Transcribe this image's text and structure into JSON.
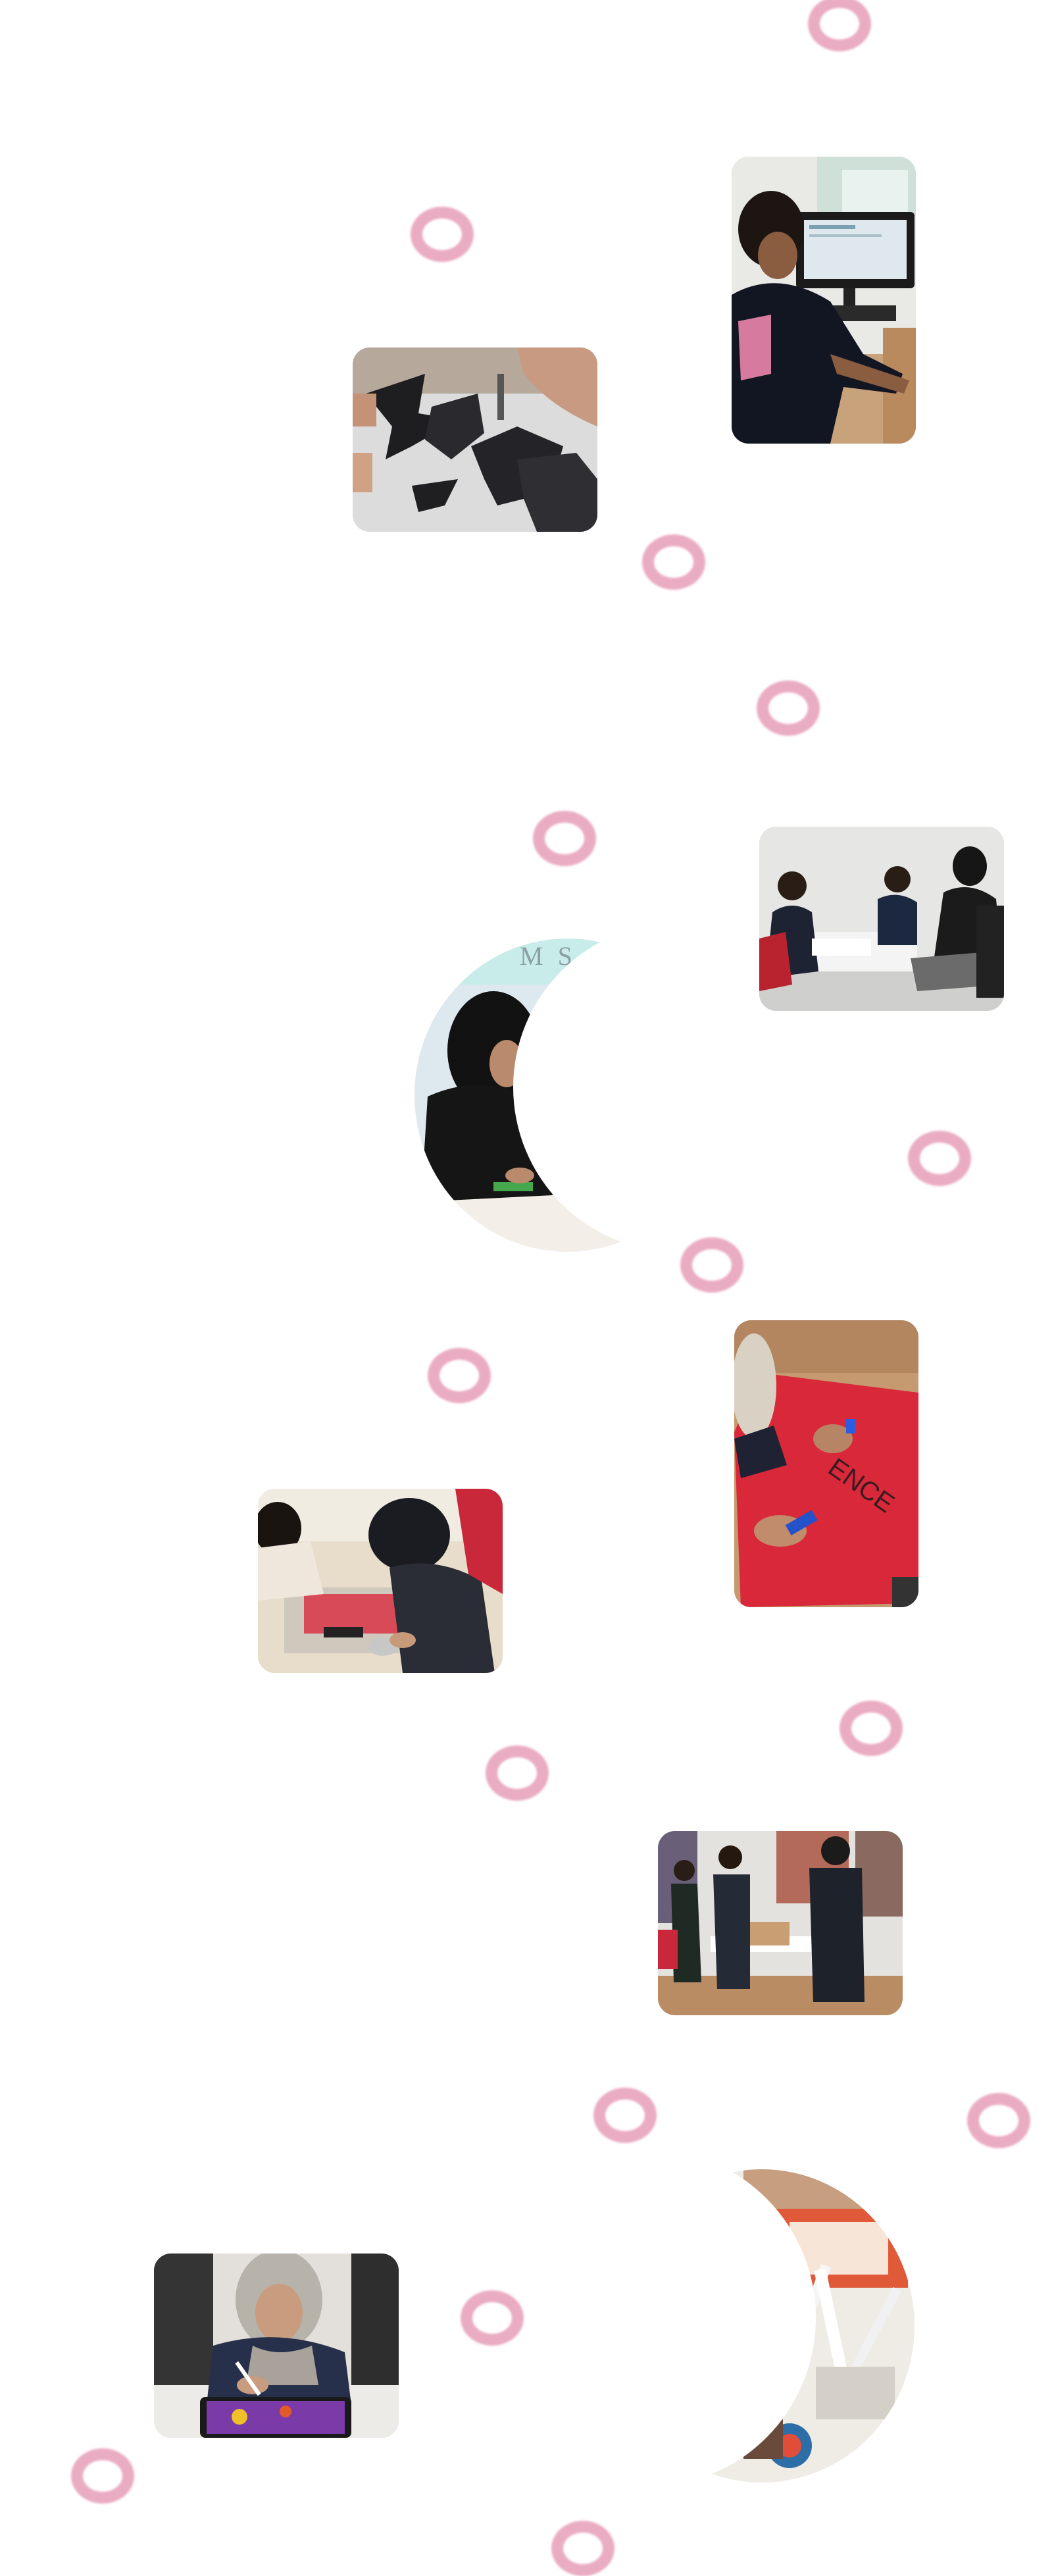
{
  "colors": {
    "background": "#ffffff",
    "ring": "#e8a5bd"
  },
  "decorations": {
    "ring_icon": "pink-ring-icon"
  },
  "photos": [
    {
      "id": "photo-computer-student",
      "semantic": "student-at-computer-photo"
    },
    {
      "id": "photo-paper-cutouts",
      "semantic": "black-paper-cutouts-photo"
    },
    {
      "id": "photo-group-seated",
      "semantic": "seated-group-photo"
    },
    {
      "id": "photo-red-banner",
      "semantic": "red-banner-painting-photo"
    },
    {
      "id": "photo-table-craft",
      "semantic": "table-craft-photo"
    },
    {
      "id": "photo-classroom-boxes",
      "semantic": "classroom-boxes-photo"
    },
    {
      "id": "photo-tablet-drawing",
      "semantic": "tablet-drawing-photo"
    },
    {
      "id": "crescent-hijab-student",
      "semantic": "crescent-hijab-student-photo"
    },
    {
      "id": "crescent-art-supplies",
      "semantic": "crescent-art-supplies-photo"
    }
  ]
}
